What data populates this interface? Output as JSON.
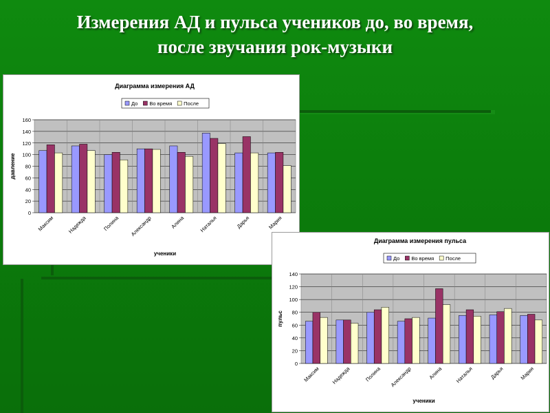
{
  "title": {
    "line1": "Измерения АД и пульса учеников до, во время,",
    "line2": "после звучания рок-музыки"
  },
  "colors": {
    "background": "#0f8a0f",
    "series": [
      "#9999ff",
      "#993366",
      "#ffffcc"
    ],
    "plot_area": "#c0c0c0"
  },
  "chart_data": [
    {
      "type": "bar",
      "title": "Диаграмма измерения АД",
      "xlabel": "ученики",
      "ylabel": "давление",
      "ylim": [
        0,
        160
      ],
      "yticks": [
        0,
        20,
        40,
        60,
        80,
        100,
        120,
        140,
        160
      ],
      "grid": true,
      "legend_position": "top",
      "categories": [
        "Максим",
        "Надежда",
        "Полина",
        "Александр",
        "Алина",
        "Наталья",
        "Дарья",
        "Мария"
      ],
      "series": [
        {
          "name": "До",
          "values": [
            107,
            115,
            100,
            110,
            115,
            137,
            103,
            103
          ]
        },
        {
          "name": "Во время",
          "values": [
            117,
            118,
            104,
            110,
            104,
            128,
            131,
            104
          ]
        },
        {
          "name": "После",
          "values": [
            103,
            107,
            91,
            109,
            97,
            119,
            103,
            81
          ]
        }
      ]
    },
    {
      "type": "bar",
      "title": "Диаграмма измерения пульса",
      "xlabel": "ученики",
      "ylabel": "пульс",
      "ylim": [
        0,
        140
      ],
      "yticks": [
        0,
        20,
        40,
        60,
        80,
        100,
        120,
        140
      ],
      "grid": true,
      "legend_position": "top",
      "categories": [
        "Максим",
        "Надежда",
        "Полина",
        "Александр",
        "Алина",
        "Наталья",
        "Дарья",
        "Мария"
      ],
      "series": [
        {
          "name": "До",
          "values": [
            66,
            68,
            80,
            66,
            71,
            75,
            76,
            75
          ]
        },
        {
          "name": "Во время",
          "values": [
            80,
            68,
            84,
            70,
            117,
            84,
            81,
            77
          ]
        },
        {
          "name": "После",
          "values": [
            72,
            63,
            88,
            72,
            92,
            74,
            86,
            68
          ]
        }
      ]
    }
  ]
}
